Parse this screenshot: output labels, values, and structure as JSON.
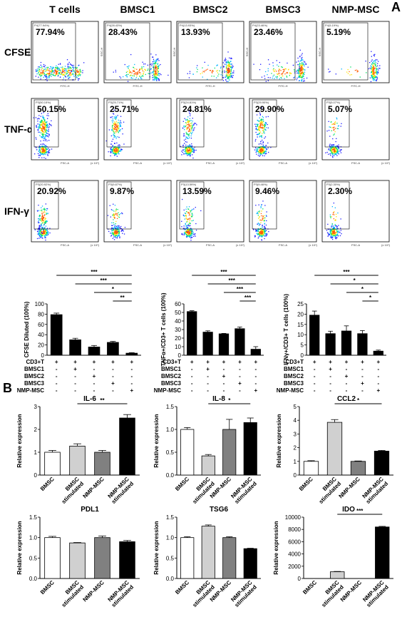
{
  "panel_a_letter": "A",
  "panel_b_letter": "B",
  "flow": {
    "columns": [
      "T cells",
      "BMSC1",
      "BMSC2",
      "BMSC3",
      "NMP-MSC"
    ],
    "rows": [
      {
        "label": "CFSE",
        "ylabel": "SSC-H",
        "xlabel": "FITC-H",
        "gate_labels": [
          "P4(77.94%)",
          "P4(28.43%)",
          "P4(13.93%)",
          "P4(23.46%)",
          "P4(5.19%)"
        ],
        "values": [
          "77.94%",
          "28.43%",
          "13.93%",
          "23.46%",
          "5.19%"
        ]
      },
      {
        "label": "TNF-α",
        "ylabel": "",
        "xlabel": "FSC-A",
        "unit": "(x 10⁴)",
        "gate_labels": [
          "P3(50.15%)",
          "P3(25.71%)",
          "P3(24.81%)",
          "P3(29.90%)",
          "P3(5.07%)"
        ],
        "values": [
          "50.15%",
          "25.71%",
          "24.81%",
          "29.90%",
          "5.07%"
        ]
      },
      {
        "label": "IFN-γ",
        "ylabel": "",
        "xlabel": "FSC-A",
        "unit": "(x 10⁴)",
        "gate_labels": [
          "P3(20.92%)",
          "P3(9.87%)",
          "P3(13.59%)",
          "P3(9.46%)",
          "P3(2.30%)"
        ],
        "values": [
          "20.92%",
          "9.87%",
          "13.59%",
          "9.46%",
          "2.30%"
        ]
      }
    ],
    "colors": [
      "#1a1aff",
      "#00b4ff",
      "#00e060",
      "#ffe000",
      "#ff5a00"
    ]
  },
  "treatment_table": {
    "row_labels": [
      "CD3+T",
      "BMSC1",
      "BMSC2",
      "BMSC3",
      "NMP-MSC"
    ],
    "signs": [
      [
        "+",
        "+",
        "+",
        "+",
        "+"
      ],
      [
        "-",
        "+",
        "-",
        "-",
        "-"
      ],
      [
        "-",
        "-",
        "+",
        "-",
        "-"
      ],
      [
        "-",
        "-",
        "-",
        "+",
        "-"
      ],
      [
        "-",
        "-",
        "-",
        "-",
        "+"
      ]
    ]
  },
  "chart_data": [
    {
      "type": "bar",
      "ylabel": "CFSE Diluted (100%)",
      "categories": [
        "T cells",
        "BMSC1",
        "BMSC2",
        "BMSC3",
        "NMP-MSC"
      ],
      "values": [
        79,
        30,
        16,
        25,
        4
      ],
      "errors": [
        3,
        3,
        3,
        2,
        1
      ],
      "ylim": [
        0,
        100
      ],
      "yticks": [
        "0",
        "20",
        "40",
        "60",
        "80",
        "100"
      ],
      "significance": [
        {
          "from": 0,
          "to": 4,
          "label": "***"
        },
        {
          "from": 1,
          "to": 4,
          "label": "***"
        },
        {
          "from": 2,
          "to": 4,
          "label": "*"
        },
        {
          "from": 3,
          "to": 4,
          "label": "**"
        }
      ]
    },
    {
      "type": "bar",
      "ylabel": "TNFα+/CD3+ T cells (100%)",
      "categories": [
        "T cells",
        "BMSC1",
        "BMSC2",
        "BMSC3",
        "NMP-MSC"
      ],
      "values": [
        51,
        27,
        25,
        31,
        7
      ],
      "errors": [
        1,
        1.5,
        0.5,
        2,
        3
      ],
      "ylim": [
        0,
        60
      ],
      "yticks": [
        "0",
        "10",
        "20",
        "30",
        "40",
        "50",
        "60"
      ],
      "significance": [
        {
          "from": 0,
          "to": 4,
          "label": "***"
        },
        {
          "from": 1,
          "to": 4,
          "label": "***"
        },
        {
          "from": 2,
          "to": 4,
          "label": "***"
        },
        {
          "from": 3,
          "to": 4,
          "label": "***"
        }
      ]
    },
    {
      "type": "bar",
      "ylabel": "IFNγ+/CD3+ T cells (100%)",
      "categories": [
        "T cells",
        "BMSC1",
        "BMSC2",
        "BMSC3",
        "NMP-MSC"
      ],
      "values": [
        19.5,
        10.5,
        11.8,
        10.5,
        2
      ],
      "errors": [
        2,
        1.2,
        2.5,
        1.5,
        0.5
      ],
      "ylim": [
        0,
        25
      ],
      "yticks": [
        "0",
        "5",
        "10",
        "15",
        "20",
        "25"
      ],
      "significance": [
        {
          "from": 0,
          "to": 4,
          "label": "***"
        },
        {
          "from": 1,
          "to": 4,
          "label": "*"
        },
        {
          "from": 2,
          "to": 4,
          "label": "*"
        },
        {
          "from": 3,
          "to": 4,
          "label": "*"
        }
      ]
    },
    {
      "type": "bar",
      "title": "IL-6",
      "ylabel": "Relative expression",
      "categories": [
        "BMSC",
        "BMSC stimulated",
        "NMP-MSC",
        "NMP-MSC stimulated"
      ],
      "values": [
        1.0,
        1.27,
        1.0,
        2.5
      ],
      "errors": [
        0.08,
        0.1,
        0.08,
        0.15
      ],
      "colors": [
        "#ffffff",
        "#d0d0d0",
        "#808080",
        "#000000"
      ],
      "ylim": [
        0,
        3
      ],
      "yticks": [
        "0",
        "1",
        "2",
        "3"
      ],
      "significance": [
        {
          "from": 1,
          "to": 3,
          "label": "**"
        }
      ]
    },
    {
      "type": "bar",
      "title": "IL-8",
      "ylabel": "Relative expression",
      "categories": [
        "BMSC",
        "BMSC stimulated",
        "NMP-MSC",
        "NMP-MSC stimulated"
      ],
      "values": [
        1.0,
        0.42,
        1.0,
        1.15
      ],
      "errors": [
        0.04,
        0.03,
        0.22,
        0.1
      ],
      "colors": [
        "#ffffff",
        "#d0d0d0",
        "#808080",
        "#000000"
      ],
      "ylim": [
        0,
        1.5
      ],
      "yticks": [
        "0.0",
        "0.5",
        "1.0",
        "1.5"
      ],
      "significance": [
        {
          "from": 1,
          "to": 3,
          "label": "*"
        }
      ]
    },
    {
      "type": "bar",
      "title": "CCL2",
      "ylabel": "Relative expression",
      "categories": [
        "BMSC",
        "BMSC stimulated",
        "NMP-MSC",
        "NMP-MSC stimulated"
      ],
      "values": [
        1.0,
        3.85,
        1.0,
        1.75
      ],
      "errors": [
        0.05,
        0.2,
        0.03,
        0.05
      ],
      "colors": [
        "#ffffff",
        "#d0d0d0",
        "#808080",
        "#000000"
      ],
      "ylim": [
        0,
        5
      ],
      "yticks": [
        "0",
        "1",
        "2",
        "3",
        "4",
        "5"
      ],
      "significance": [
        {
          "from": 1,
          "to": 3,
          "label": "*"
        }
      ]
    },
    {
      "type": "bar",
      "title": "PDL1",
      "ylabel": "Relative expression",
      "categories": [
        "BMSC",
        "BMSC stimulated",
        "NMP-MSC",
        "NMP-MSC stimulated"
      ],
      "values": [
        1.0,
        0.87,
        1.0,
        0.9
      ],
      "errors": [
        0.03,
        0.01,
        0.04,
        0.03
      ],
      "colors": [
        "#ffffff",
        "#d0d0d0",
        "#808080",
        "#000000"
      ],
      "ylim": [
        0,
        1.5
      ],
      "yticks": [
        "0.0",
        "0.5",
        "1.0",
        "1.5"
      ],
      "significance": []
    },
    {
      "type": "bar",
      "title": "TSG6",
      "ylabel": "Relative expression",
      "categories": [
        "BMSC",
        "BMSC stimulated",
        "NMP-MSC",
        "NMP-MSC stimulated"
      ],
      "values": [
        1.0,
        1.28,
        1.0,
        0.73
      ],
      "errors": [
        0.02,
        0.03,
        0.02,
        0.01
      ],
      "colors": [
        "#ffffff",
        "#d0d0d0",
        "#808080",
        "#000000"
      ],
      "ylim": [
        0,
        1.5
      ],
      "yticks": [
        "0.0",
        "0.5",
        "1.0",
        "1.5"
      ],
      "significance": []
    },
    {
      "type": "bar",
      "title": "IDO",
      "ylabel": "Relative expression",
      "categories": [
        "BMSC",
        "BMSC stimulated",
        "NMP-MSC",
        "NMP-MSC stimulated"
      ],
      "values": [
        1,
        1100,
        1,
        8400
      ],
      "errors": [
        0,
        50,
        0,
        100
      ],
      "colors": [
        "#ffffff",
        "#d0d0d0",
        "#808080",
        "#000000"
      ],
      "ylim": [
        0,
        10000
      ],
      "yticks": [
        "0",
        "2000",
        "4000",
        "6000",
        "8000",
        "10000"
      ],
      "significance": [
        {
          "from": 1,
          "to": 3,
          "label": "***"
        }
      ]
    }
  ]
}
